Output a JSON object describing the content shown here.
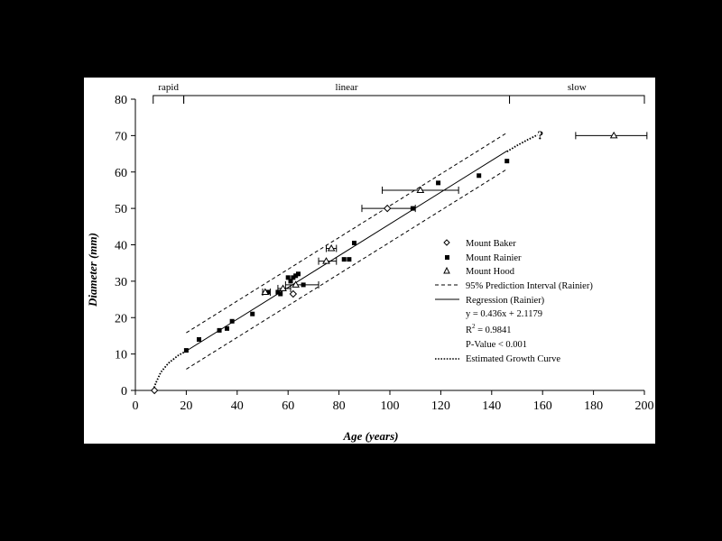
{
  "chart_data": {
    "type": "scatter",
    "title": "",
    "xlabel": "Age (years)",
    "ylabel": "Diameter (mm)",
    "xlim": [
      0,
      200
    ],
    "ylim": [
      0,
      80
    ],
    "x_ticks": [
      "0",
      "20",
      "40",
      "60",
      "80",
      "100",
      "120",
      "140",
      "160",
      "180",
      "200"
    ],
    "y_ticks": [
      "0",
      "10",
      "20",
      "30",
      "40",
      "50",
      "60",
      "70",
      "80"
    ],
    "grid": false,
    "legend_position": "right",
    "phases": [
      {
        "label": "rapid",
        "x_start": 7,
        "x_end": 19
      },
      {
        "label": "linear",
        "x_start": 19,
        "x_end": 147
      },
      {
        "label": "slow",
        "x_start": 147,
        "x_end": 200
      }
    ],
    "series": [
      {
        "name": "Mount Baker",
        "marker": "diamond",
        "points": [
          {
            "x": 7.5,
            "y": 0
          },
          {
            "x": 62,
            "y": 26.5
          },
          {
            "x": 99,
            "y": 50,
            "xerr": [
              89,
              110
            ]
          }
        ]
      },
      {
        "name": "Mount Rainier",
        "marker": "square",
        "points": [
          {
            "x": 20,
            "y": 11
          },
          {
            "x": 25,
            "y": 14
          },
          {
            "x": 33,
            "y": 16.5
          },
          {
            "x": 36,
            "y": 17
          },
          {
            "x": 38,
            "y": 19
          },
          {
            "x": 46,
            "y": 21
          },
          {
            "x": 52,
            "y": 27
          },
          {
            "x": 56,
            "y": 27
          },
          {
            "x": 57,
            "y": 26.5
          },
          {
            "x": 60,
            "y": 31
          },
          {
            "x": 61,
            "y": 30
          },
          {
            "x": 62,
            "y": 31
          },
          {
            "x": 63,
            "y": 31.5
          },
          {
            "x": 64,
            "y": 32
          },
          {
            "x": 66,
            "y": 29
          },
          {
            "x": 82,
            "y": 36
          },
          {
            "x": 84,
            "y": 36
          },
          {
            "x": 86,
            "y": 40.5
          },
          {
            "x": 109,
            "y": 50
          },
          {
            "x": 119,
            "y": 57
          },
          {
            "x": 135,
            "y": 59
          },
          {
            "x": 146,
            "y": 63
          }
        ]
      },
      {
        "name": "Mount Hood",
        "marker": "triangle",
        "points": [
          {
            "x": 51,
            "y": 27,
            "xerr": [
              50,
              53
            ]
          },
          {
            "x": 58,
            "y": 28,
            "xerr": [
              56,
              61
            ]
          },
          {
            "x": 63,
            "y": 29,
            "xerr": [
              59,
              72
            ]
          },
          {
            "x": 75,
            "y": 35.5,
            "xerr": [
              72,
              79
            ]
          },
          {
            "x": 77,
            "y": 39,
            "xerr": [
              75,
              79
            ]
          },
          {
            "x": 112,
            "y": 55,
            "xerr": [
              97,
              127
            ]
          },
          {
            "x": 188,
            "y": 70,
            "xerr": [
              173,
              201
            ]
          }
        ]
      }
    ],
    "regression": {
      "name": "Regression (Rainier)",
      "slope": 0.436,
      "intercept": 2.1179,
      "x_range": [
        20,
        146
      ]
    },
    "prediction_interval": {
      "name": "95% Prediction Interval (Rainier)",
      "offset": 5,
      "x_range": [
        20,
        146
      ]
    },
    "growth_curve": {
      "name": "Estimated Growth Curve",
      "points": [
        [
          7,
          0
        ],
        [
          8,
          2
        ],
        [
          10,
          5
        ],
        [
          13,
          7.5
        ],
        [
          17,
          9.7
        ],
        [
          20,
          10.8
        ],
        [
          146,
          65.6
        ],
        [
          150,
          67.3
        ],
        [
          154,
          68.8
        ],
        [
          158,
          70.2
        ]
      ]
    },
    "legend": {
      "baker": "Mount Baker",
      "rainier": "Mount Rainier",
      "hood": "Mount Hood",
      "pi": "95% Prediction Interval (Rainier)",
      "regression": "Regression (Rainier)",
      "equation": "y = 0.436x + 2.1179",
      "r2_label": "R",
      "r2_sup": "2",
      "r2_value": " = 0.9841",
      "pvalue": "P-Value < 0.001",
      "growth": "Estimated Growth Curve"
    },
    "annotations": [
      {
        "text": "?",
        "x": 160,
        "y": 70
      }
    ]
  }
}
